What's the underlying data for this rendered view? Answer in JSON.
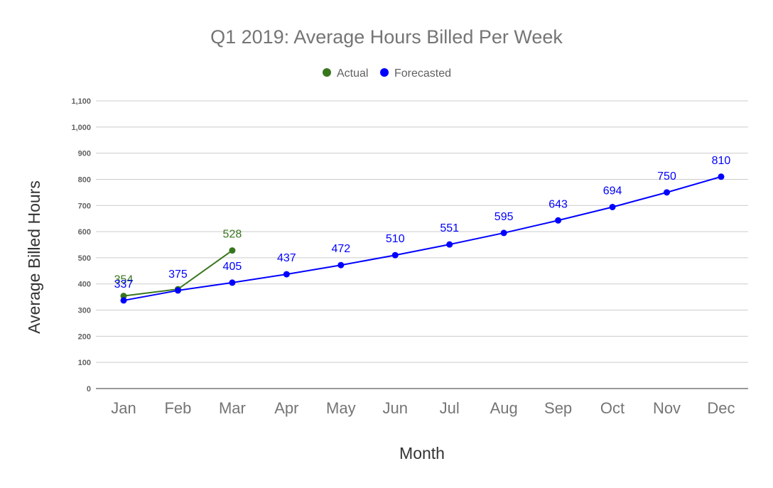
{
  "chart_data": {
    "type": "line",
    "title": "Q1 2019: Average Hours Billed Per Week",
    "xlabel": "Month",
    "ylabel": "Average Billed Hours",
    "categories": [
      "Jan",
      "Feb",
      "Mar",
      "Apr",
      "May",
      "Jun",
      "Jul",
      "Aug",
      "Sep",
      "Oct",
      "Nov",
      "Dec"
    ],
    "ylim": [
      0,
      1100
    ],
    "yticks": [
      0,
      100,
      200,
      300,
      400,
      500,
      600,
      700,
      800,
      900,
      1000,
      1100
    ],
    "ytick_labels": [
      "0",
      "100",
      "200",
      "300",
      "400",
      "500",
      "600",
      "700",
      "800",
      "900",
      "1,000",
      "1,100"
    ],
    "grid": true,
    "legend_position": "top",
    "series": [
      {
        "name": "Actual",
        "color": "#38761d",
        "values": [
          354,
          380,
          528,
          null,
          null,
          null,
          null,
          null,
          null,
          null,
          null,
          null
        ],
        "labels": [
          "354",
          "",
          "528",
          "",
          "",
          "",
          "",
          "",
          "",
          "",
          "",
          ""
        ]
      },
      {
        "name": "Forecasted",
        "color": "#0000ff",
        "values": [
          337,
          375,
          405,
          437,
          472,
          510,
          551,
          595,
          643,
          694,
          750,
          810
        ],
        "labels": [
          "337",
          "375",
          "405",
          "437",
          "472",
          "510",
          "551",
          "595",
          "643",
          "694",
          "750",
          "810"
        ]
      }
    ]
  }
}
